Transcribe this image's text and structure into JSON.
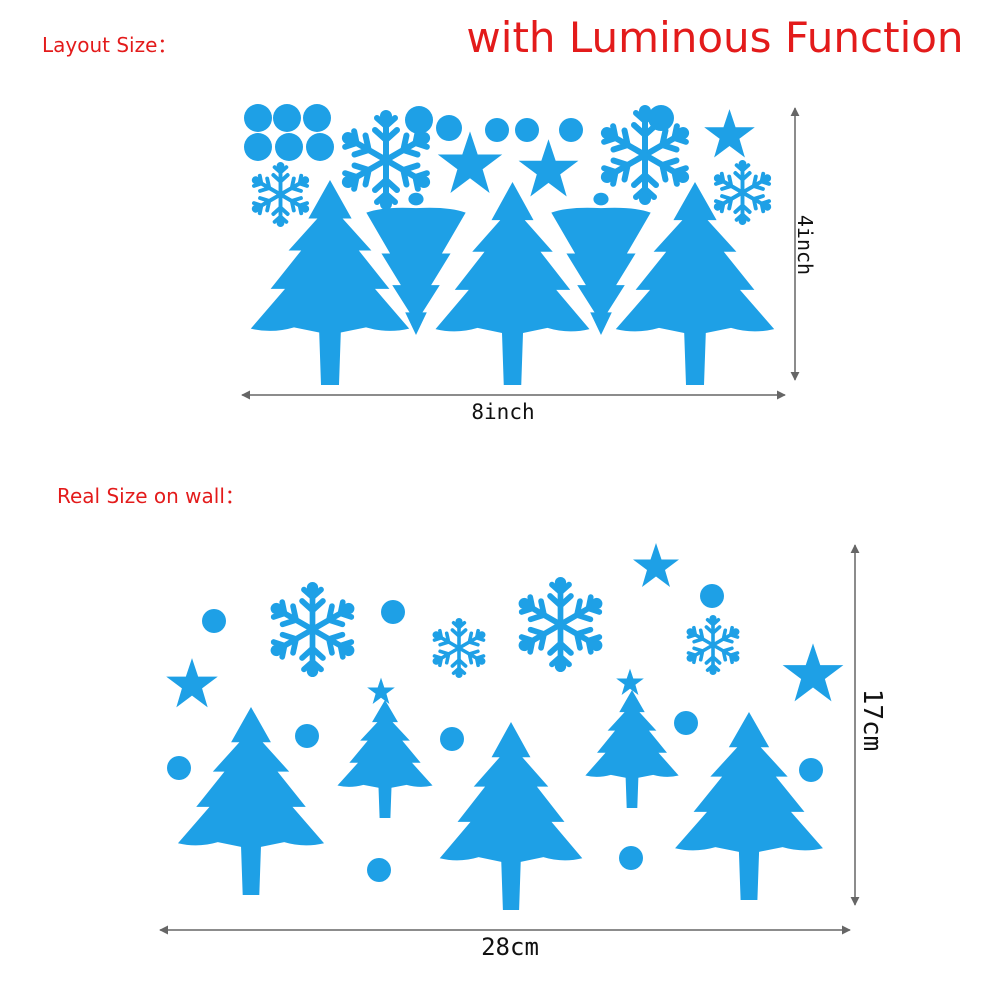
{
  "header": {
    "title": "with Luminous Function"
  },
  "layout": {
    "label": "Layout Size：",
    "height": "4inch",
    "width": "8inch"
  },
  "real": {
    "label": "Real Size on wall：",
    "height": "17cm",
    "width": "28cm"
  }
}
